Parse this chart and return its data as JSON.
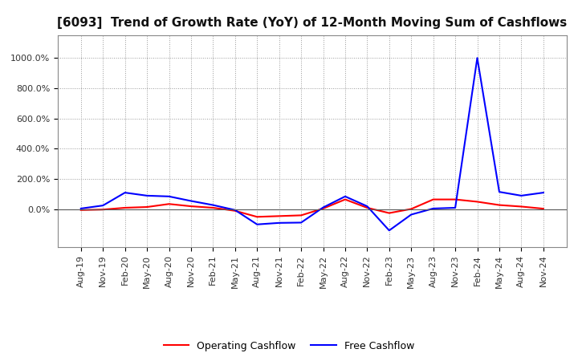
{
  "title": "[6093]  Trend of Growth Rate (YoY) of 12-Month Moving Sum of Cashflows",
  "x_labels": [
    "Aug-19",
    "Nov-19",
    "Feb-20",
    "May-20",
    "Aug-20",
    "Nov-20",
    "Feb-21",
    "May-21",
    "Aug-21",
    "Nov-21",
    "Feb-22",
    "May-22",
    "Aug-22",
    "Nov-22",
    "Feb-23",
    "May-23",
    "Aug-23",
    "Nov-23",
    "Feb-24",
    "May-24",
    "Aug-24",
    "Nov-24"
  ],
  "operating_cashflow": [
    -0.05,
    -0.02,
    0.1,
    0.15,
    0.35,
    0.2,
    0.1,
    -0.1,
    -0.5,
    -0.45,
    -0.4,
    0.05,
    0.65,
    0.1,
    -0.25,
    0.02,
    0.65,
    0.65,
    0.5,
    0.28,
    0.18,
    0.04
  ],
  "free_cashflow": [
    0.05,
    0.25,
    1.1,
    0.9,
    0.85,
    0.55,
    0.28,
    -0.05,
    -1.0,
    -0.9,
    -0.88,
    0.12,
    0.85,
    0.2,
    -1.4,
    -0.35,
    0.05,
    0.1,
    10.0,
    1.15,
    0.9,
    1.1
  ],
  "operating_color": "#ff0000",
  "free_color": "#0000ff",
  "bg_color": "#ffffff",
  "grid_color": "#999999",
  "ylim_min": -2.5,
  "ylim_max": 11.5,
  "ytick_vals": [
    0.0,
    2.0,
    4.0,
    6.0,
    8.0,
    10.0
  ],
  "ytick_labels": [
    "0.0%",
    "200.0%",
    "400.0%",
    "600.0%",
    "800.0%",
    "1000.0%"
  ],
  "legend_labels": [
    "Operating Cashflow",
    "Free Cashflow"
  ],
  "title_fontsize": 11,
  "tick_fontsize": 8,
  "legend_fontsize": 9
}
